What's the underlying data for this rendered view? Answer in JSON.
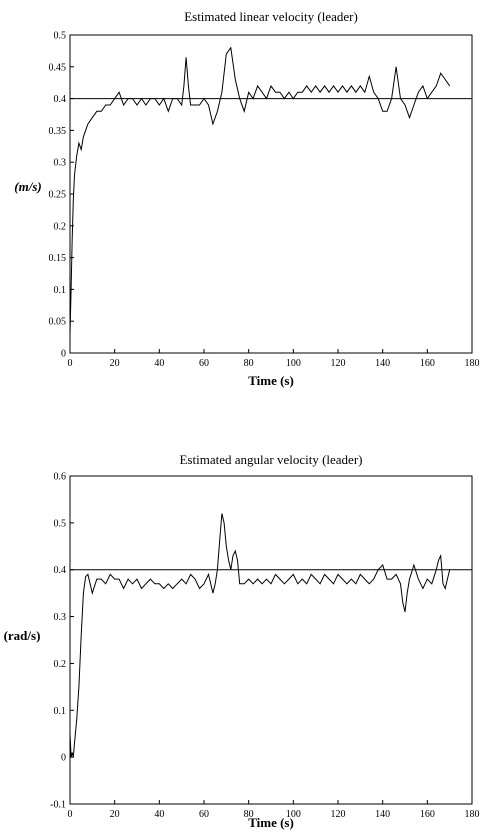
{
  "chart_data": [
    {
      "type": "line",
      "title": "Estimated linear velocity (leader)",
      "xlabel": "Time (s)",
      "ylabel": "(m/s)",
      "xlim": [
        0,
        180
      ],
      "ylim": [
        0,
        0.5
      ],
      "x_ticks": [
        0,
        20,
        40,
        60,
        80,
        100,
        120,
        140,
        160,
        180
      ],
      "y_ticks": [
        0,
        0.05,
        0.1,
        0.15,
        0.2,
        0.25,
        0.3,
        0.35,
        0.4,
        0.45,
        0.5
      ],
      "x_tick_labels": [
        "0",
        "20",
        "40",
        "60",
        "80",
        "100",
        "120",
        "140",
        "160",
        "180"
      ],
      "y_tick_labels": [
        "0",
        "0.05",
        "0.1",
        "0.15",
        "0.2",
        "0.25",
        "0.3",
        "0.35",
        "0.4",
        "0.45",
        "0.5"
      ],
      "reference_lines": [
        {
          "y": 0.4
        }
      ],
      "grid": false,
      "series": [
        {
          "x": [
            0,
            0.5,
            1,
            1.5,
            2,
            3,
            4,
            5,
            6,
            7,
            8,
            10,
            12,
            14,
            16,
            18,
            20,
            22,
            24,
            26,
            28,
            30,
            32,
            34,
            36,
            38,
            40,
            42,
            44,
            46,
            48,
            50,
            51,
            52,
            53,
            54,
            56,
            58,
            60,
            62,
            64,
            66,
            68,
            70,
            72,
            74,
            76,
            78,
            80,
            82,
            84,
            86,
            88,
            90,
            92,
            94,
            96,
            98,
            100,
            102,
            104,
            106,
            108,
            110,
            112,
            114,
            116,
            118,
            120,
            122,
            124,
            126,
            128,
            130,
            132,
            134,
            136,
            138,
            140,
            142,
            144,
            146,
            148,
            150,
            152,
            154,
            156,
            158,
            160,
            162,
            164,
            166,
            168,
            170
          ],
          "y": [
            0.03,
            0.1,
            0.18,
            0.24,
            0.28,
            0.31,
            0.33,
            0.32,
            0.34,
            0.35,
            0.36,
            0.37,
            0.38,
            0.38,
            0.39,
            0.39,
            0.4,
            0.41,
            0.39,
            0.4,
            0.4,
            0.39,
            0.4,
            0.39,
            0.4,
            0.4,
            0.39,
            0.4,
            0.38,
            0.4,
            0.4,
            0.39,
            0.42,
            0.465,
            0.42,
            0.39,
            0.39,
            0.39,
            0.4,
            0.39,
            0.36,
            0.38,
            0.41,
            0.47,
            0.48,
            0.43,
            0.4,
            0.38,
            0.41,
            0.4,
            0.42,
            0.41,
            0.4,
            0.42,
            0.41,
            0.41,
            0.4,
            0.41,
            0.4,
            0.41,
            0.41,
            0.42,
            0.41,
            0.42,
            0.41,
            0.42,
            0.41,
            0.42,
            0.41,
            0.42,
            0.41,
            0.42,
            0.41,
            0.42,
            0.41,
            0.435,
            0.41,
            0.4,
            0.38,
            0.38,
            0.4,
            0.45,
            0.4,
            0.39,
            0.37,
            0.39,
            0.41,
            0.42,
            0.4,
            0.41,
            0.42,
            0.44,
            0.43,
            0.42
          ]
        }
      ]
    },
    {
      "type": "line",
      "title": "Estimated angular velocity (leader)",
      "xlabel": "Time (s)",
      "ylabel": "(rad/s)",
      "xlim": [
        0,
        180
      ],
      "ylim": [
        -0.1,
        0.6
      ],
      "x_ticks": [
        0,
        20,
        40,
        60,
        80,
        100,
        120,
        140,
        160,
        180
      ],
      "y_ticks": [
        -0.1,
        0,
        0.1,
        0.2,
        0.3,
        0.4,
        0.5,
        0.6
      ],
      "x_tick_labels": [
        "0",
        "20",
        "40",
        "60",
        "80",
        "100",
        "120",
        "140",
        "160",
        "180"
      ],
      "y_tick_labels": [
        "-0.1",
        "0",
        "0.1",
        "0.2",
        "0.3",
        "0.4",
        "0.5",
        "0.6"
      ],
      "reference_lines": [
        {
          "y": 0.4
        }
      ],
      "grid": false,
      "series": [
        {
          "x": [
            0,
            0.5,
            1,
            1.5,
            2,
            3,
            4,
            5,
            6,
            7,
            8,
            9,
            10,
            12,
            14,
            16,
            18,
            20,
            22,
            24,
            26,
            28,
            30,
            32,
            34,
            36,
            38,
            40,
            42,
            44,
            46,
            48,
            50,
            52,
            54,
            56,
            58,
            60,
            62,
            64,
            65,
            66,
            67,
            68,
            69,
            70,
            71,
            72,
            73,
            74,
            75,
            76,
            78,
            80,
            82,
            84,
            86,
            88,
            90,
            92,
            94,
            96,
            98,
            100,
            102,
            104,
            106,
            108,
            110,
            112,
            114,
            116,
            118,
            120,
            122,
            124,
            126,
            128,
            130,
            132,
            134,
            136,
            138,
            140,
            142,
            144,
            146,
            148,
            149,
            150,
            151,
            152,
            154,
            156,
            158,
            160,
            162,
            164,
            165,
            166,
            167,
            168,
            169,
            170
          ],
          "y": [
            0.05,
            0.0,
            0.01,
            0.0,
            0.03,
            0.08,
            0.15,
            0.26,
            0.35,
            0.385,
            0.39,
            0.37,
            0.35,
            0.38,
            0.38,
            0.37,
            0.39,
            0.38,
            0.38,
            0.36,
            0.38,
            0.37,
            0.38,
            0.36,
            0.37,
            0.38,
            0.37,
            0.37,
            0.36,
            0.37,
            0.36,
            0.37,
            0.38,
            0.37,
            0.39,
            0.38,
            0.36,
            0.37,
            0.39,
            0.35,
            0.37,
            0.4,
            0.46,
            0.52,
            0.5,
            0.45,
            0.42,
            0.4,
            0.43,
            0.44,
            0.42,
            0.37,
            0.37,
            0.38,
            0.37,
            0.38,
            0.37,
            0.38,
            0.37,
            0.39,
            0.38,
            0.37,
            0.38,
            0.39,
            0.37,
            0.38,
            0.37,
            0.39,
            0.38,
            0.37,
            0.39,
            0.38,
            0.37,
            0.39,
            0.38,
            0.37,
            0.38,
            0.37,
            0.39,
            0.38,
            0.37,
            0.38,
            0.4,
            0.41,
            0.38,
            0.38,
            0.39,
            0.37,
            0.33,
            0.31,
            0.35,
            0.38,
            0.41,
            0.38,
            0.36,
            0.38,
            0.37,
            0.4,
            0.42,
            0.43,
            0.37,
            0.36,
            0.38,
            0.4
          ]
        }
      ]
    }
  ]
}
